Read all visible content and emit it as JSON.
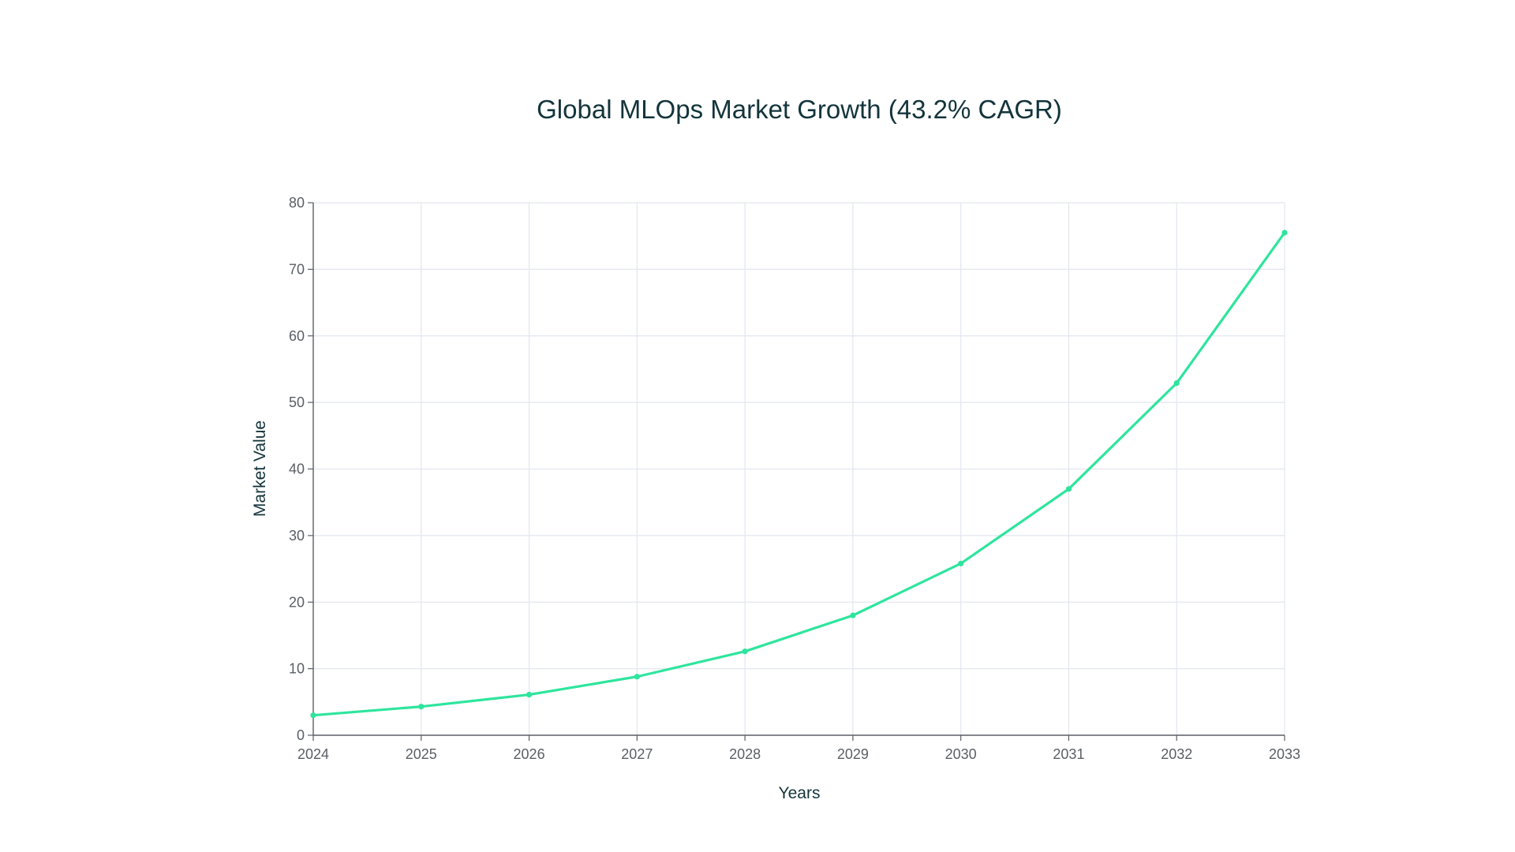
{
  "chart_data": {
    "type": "line",
    "title": "Global MLOps Market Growth (43.2% CAGR)",
    "xlabel": "Years",
    "ylabel": "Market Value",
    "x": [
      2024,
      2025,
      2026,
      2027,
      2028,
      2029,
      2030,
      2031,
      2032,
      2033
    ],
    "series": [
      {
        "values": [
          3.0,
          4.3,
          6.1,
          8.8,
          12.6,
          18.0,
          25.8,
          37.0,
          52.9,
          75.5
        ]
      }
    ],
    "xlim": [
      2024,
      2033
    ],
    "ylim": [
      0,
      80
    ],
    "yticks": [
      0,
      10,
      20,
      30,
      40,
      50,
      60,
      70,
      80
    ],
    "xticks": [
      "2024",
      "2025",
      "2026",
      "2027",
      "2028",
      "2029",
      "2030",
      "2031",
      "2032",
      "2033"
    ],
    "grid": true,
    "legend": "none",
    "colors": {
      "line": "#2ee59d",
      "grid": "#e3e6ef",
      "axis": "#5a5f66",
      "title": "#13343b"
    }
  }
}
